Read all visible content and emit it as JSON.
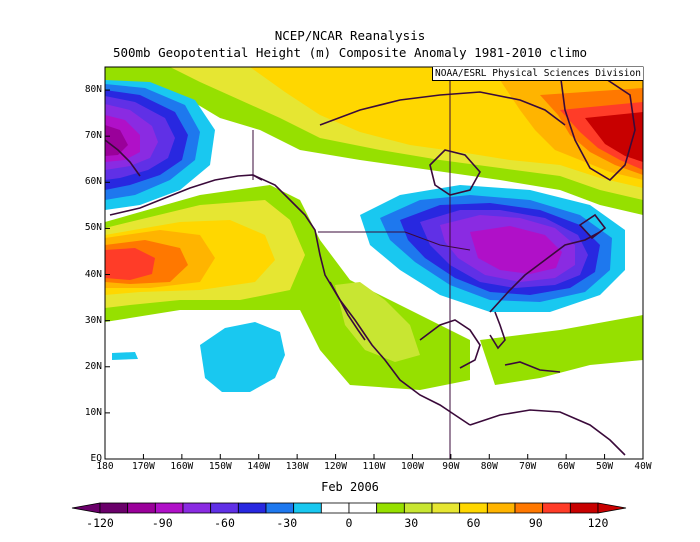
{
  "title_line1": "NCEP/NCAR Reanalysis",
  "title_line2": "500mb Geopotential Height (m) Composite Anomaly 1981-2010 climo",
  "credit": "NOAA/ESRL Physical Sciences Division",
  "date_label": "Feb 2006",
  "lat_labels": [
    "EQ",
    "10N",
    "20N",
    "30N",
    "40N",
    "50N",
    "60N",
    "70N",
    "80N"
  ],
  "lon_labels": [
    "180",
    "170W",
    "160W",
    "150W",
    "140W",
    "130W",
    "120W",
    "110W",
    "100W",
    "90W",
    "80W",
    "70W",
    "60W",
    "50W",
    "40W"
  ],
  "colorbar": {
    "labels": [
      "-120",
      "-90",
      "-60",
      "-30",
      "0",
      "30",
      "60",
      "90",
      "120"
    ],
    "colors": [
      "#6a006a",
      "#9a009a",
      "#b010c8",
      "#8a2be2",
      "#6030e6",
      "#2828e0",
      "#1e78ee",
      "#19c8f0",
      "#ffffff",
      "#ffffff",
      "#96e000",
      "#c8e632",
      "#e6e632",
      "#ffd700",
      "#ffb400",
      "#ff7800",
      "#ff3c28",
      "#c80000"
    ]
  },
  "anomaly_colors": {
    "neg120": "#6a006a",
    "neg105": "#9a009a",
    "neg90": "#b010c8",
    "neg75": "#8a2be2",
    "neg60": "#6030e6",
    "neg45": "#2828e0",
    "neg30": "#1e78ee",
    "neg15": "#19c8f0",
    "zero": "#ffffff",
    "pos15": "#96e000",
    "pos30": "#c8e632",
    "pos45": "#e6e632",
    "pos60": "#ffd700",
    "pos75": "#ffb400",
    "pos90": "#ff7800",
    "pos105": "#ff3c28",
    "pos120": "#c80000",
    "coast": "#3a0a3a"
  }
}
